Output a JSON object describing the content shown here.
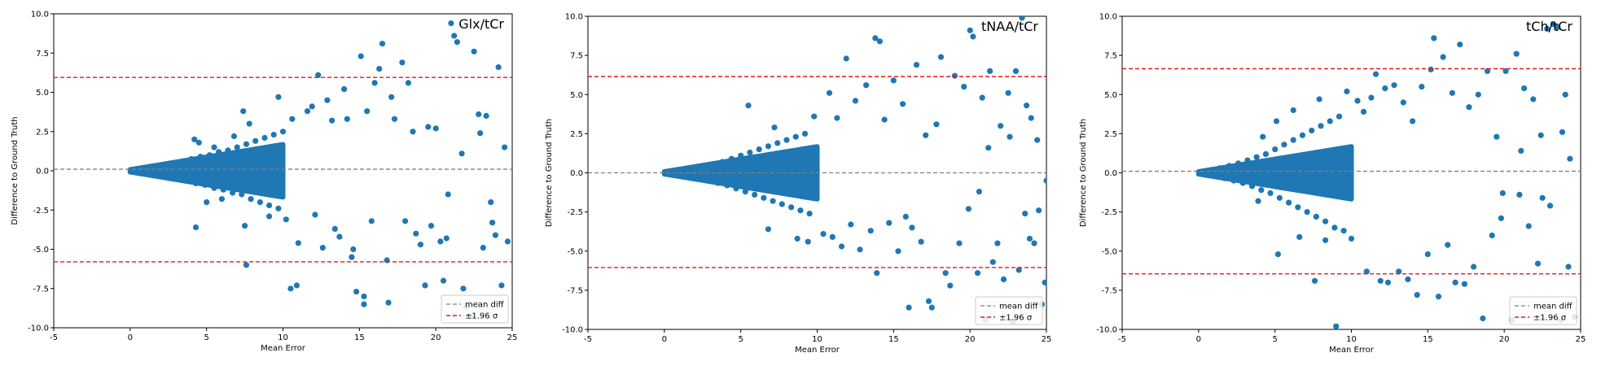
{
  "figure": {
    "shared": {
      "xlabel": "Mean Error",
      "ylabel": "Difference to Ground Truth",
      "xlim": [
        -5,
        25
      ],
      "ylim": [
        -10,
        10
      ],
      "x_ticks": [
        -5,
        0,
        5,
        10,
        15,
        20,
        25
      ],
      "y_ticks": [
        -10.0,
        -7.5,
        -5.0,
        -2.5,
        0.0,
        2.5,
        5.0,
        7.5,
        10.0
      ],
      "legend": [
        "mean diff",
        "±1.96 σ"
      ],
      "legend_position": "lower-right",
      "point_color": "#1f77b4",
      "mean_line_color": "#808080",
      "limit_line_color": "#e41a1c"
    }
  },
  "chart_data": [
    {
      "type": "scatter",
      "title": "Glx/tCr",
      "xlabel": "Mean Error",
      "ylabel": "Difference to Ground Truth",
      "xlim": [
        -5,
        25
      ],
      "ylim": [
        -10,
        10
      ],
      "mean_diff": 0.1,
      "upper_limit": 5.95,
      "lower_limit": -5.8,
      "legend": [
        "mean diff",
        "±1.96 σ"
      ],
      "legend_position": "lower-right",
      "points": [
        [
          0.2,
          0.05
        ],
        [
          0.4,
          -0.1
        ],
        [
          0.6,
          0.12
        ],
        [
          0.8,
          -0.15
        ],
        [
          1.0,
          0.2
        ],
        [
          1.3,
          -0.2
        ],
        [
          1.6,
          0.25
        ],
        [
          1.9,
          -0.3
        ],
        [
          2.2,
          0.35
        ],
        [
          2.5,
          -0.4
        ],
        [
          2.8,
          0.45
        ],
        [
          3.1,
          -0.5
        ],
        [
          3.4,
          0.6
        ],
        [
          3.7,
          -0.6
        ],
        [
          4.0,
          0.75
        ],
        [
          4.3,
          -0.8
        ],
        [
          4.6,
          0.9
        ],
        [
          4.9,
          -0.9
        ],
        [
          5.2,
          1.0
        ],
        [
          5.5,
          -1.1
        ],
        [
          5.8,
          1.2
        ],
        [
          6.1,
          -1.2
        ],
        [
          6.4,
          1.3
        ],
        [
          6.7,
          -1.4
        ],
        [
          7.0,
          1.5
        ],
        [
          7.3,
          -1.5
        ],
        [
          7.6,
          1.7
        ],
        [
          7.9,
          -1.8
        ],
        [
          8.2,
          1.9
        ],
        [
          8.5,
          -2.0
        ],
        [
          8.8,
          2.1
        ],
        [
          9.1,
          -2.2
        ],
        [
          9.4,
          2.3
        ],
        [
          9.7,
          -2.4
        ],
        [
          10.0,
          2.5
        ],
        [
          4.2,
          2.0
        ],
        [
          4.5,
          1.8
        ],
        [
          5.0,
          -2.0
        ],
        [
          5.5,
          1.5
        ],
        [
          6.0,
          -1.8
        ],
        [
          4.3,
          -3.6
        ],
        [
          6.8,
          2.2
        ],
        [
          7.4,
          3.8
        ],
        [
          7.8,
          3.0
        ],
        [
          7.6,
          -6.0
        ],
        [
          7.5,
          -3.5
        ],
        [
          9.7,
          4.7
        ],
        [
          9.1,
          -2.9
        ],
        [
          10.2,
          -3.1
        ],
        [
          10.6,
          3.3
        ],
        [
          11.0,
          -4.6
        ],
        [
          10.5,
          -7.5
        ],
        [
          10.9,
          -7.3
        ],
        [
          11.6,
          3.8
        ],
        [
          11.9,
          4.1
        ],
        [
          12.3,
          6.1
        ],
        [
          12.1,
          -2.8
        ],
        [
          12.6,
          -4.9
        ],
        [
          12.9,
          4.5
        ],
        [
          13.2,
          3.2
        ],
        [
          13.4,
          -3.7
        ],
        [
          13.7,
          -4.2
        ],
        [
          14.0,
          5.2
        ],
        [
          14.2,
          3.3
        ],
        [
          14.5,
          -5.5
        ],
        [
          14.6,
          -5.0
        ],
        [
          14.8,
          -7.7
        ],
        [
          15.1,
          7.3
        ],
        [
          15.3,
          -8.0
        ],
        [
          15.5,
          3.8
        ],
        [
          15.3,
          -8.5
        ],
        [
          15.8,
          -3.2
        ],
        [
          16.0,
          5.6
        ],
        [
          16.3,
          6.5
        ],
        [
          16.5,
          8.1
        ],
        [
          16.8,
          -5.7
        ],
        [
          16.9,
          -8.4
        ],
        [
          17.1,
          4.7
        ],
        [
          17.3,
          3.3
        ],
        [
          17.8,
          6.9
        ],
        [
          18.0,
          -3.2
        ],
        [
          18.2,
          5.6
        ],
        [
          18.5,
          2.5
        ],
        [
          18.7,
          -4.0
        ],
        [
          19.0,
          -4.7
        ],
        [
          19.3,
          -7.3
        ],
        [
          19.5,
          2.8
        ],
        [
          19.7,
          -3.5
        ],
        [
          20.0,
          2.7
        ],
        [
          20.3,
          -4.5
        ],
        [
          20.5,
          -7.0
        ],
        [
          20.7,
          -4.3
        ],
        [
          21.0,
          9.4
        ],
        [
          21.2,
          8.6
        ],
        [
          21.4,
          8.2
        ],
        [
          21.8,
          -7.5
        ],
        [
          22.0,
          -8.7
        ],
        [
          22.3,
          -9.3
        ],
        [
          22.5,
          7.6
        ],
        [
          22.8,
          3.6
        ],
        [
          23.1,
          -4.9
        ],
        [
          23.3,
          3.5
        ],
        [
          23.6,
          -2.0
        ],
        [
          23.9,
          -4.1
        ],
        [
          24.1,
          6.6
        ],
        [
          24.3,
          -7.3
        ],
        [
          24.5,
          1.5
        ],
        [
          24.7,
          -4.5
        ],
        [
          22.9,
          2.4
        ],
        [
          23.7,
          -3.3
        ],
        [
          21.7,
          1.1
        ],
        [
          20.8,
          -1.5
        ]
      ]
    },
    {
      "type": "scatter",
      "title": "tNAA/tCr",
      "xlabel": "Mean Error",
      "ylabel": "Difference to Ground Truth",
      "xlim": [
        -5,
        25
      ],
      "ylim": [
        -10,
        10
      ],
      "mean_diff": 0.0,
      "upper_limit": 6.15,
      "lower_limit": -6.05,
      "legend": [
        "mean diff",
        "±1.96 σ"
      ],
      "legend_position": "lower-right",
      "points": [
        [
          0.2,
          0.05
        ],
        [
          0.5,
          -0.1
        ],
        [
          0.8,
          0.15
        ],
        [
          1.1,
          -0.2
        ],
        [
          1.4,
          0.25
        ],
        [
          1.7,
          -0.3
        ],
        [
          2.0,
          0.35
        ],
        [
          2.3,
          -0.4
        ],
        [
          2.6,
          0.45
        ],
        [
          2.9,
          -0.5
        ],
        [
          3.2,
          0.55
        ],
        [
          3.5,
          -0.65
        ],
        [
          3.8,
          0.7
        ],
        [
          4.1,
          -0.8
        ],
        [
          4.4,
          0.9
        ],
        [
          4.7,
          -1.0
        ],
        [
          5.0,
          1.1
        ],
        [
          5.3,
          -1.2
        ],
        [
          5.6,
          1.3
        ],
        [
          5.9,
          -1.4
        ],
        [
          6.2,
          1.5
        ],
        [
          6.5,
          -1.6
        ],
        [
          6.8,
          1.7
        ],
        [
          7.1,
          -1.8
        ],
        [
          7.4,
          1.9
        ],
        [
          7.7,
          -2.0
        ],
        [
          8.0,
          2.1
        ],
        [
          8.3,
          -2.2
        ],
        [
          8.6,
          2.3
        ],
        [
          8.9,
          -2.4
        ],
        [
          9.2,
          2.5
        ],
        [
          9.5,
          -2.6
        ],
        [
          5.5,
          4.3
        ],
        [
          6.8,
          -3.6
        ],
        [
          7.2,
          2.9
        ],
        [
          8.7,
          -4.2
        ],
        [
          9.4,
          -4.4
        ],
        [
          9.8,
          3.6
        ],
        [
          10.4,
          -3.9
        ],
        [
          10.8,
          5.1
        ],
        [
          11.0,
          -4.1
        ],
        [
          11.3,
          3.5
        ],
        [
          11.6,
          -4.7
        ],
        [
          11.9,
          7.3
        ],
        [
          12.2,
          -3.3
        ],
        [
          12.5,
          4.6
        ],
        [
          12.8,
          -4.9
        ],
        [
          13.2,
          5.6
        ],
        [
          13.5,
          -3.7
        ],
        [
          13.8,
          8.6
        ],
        [
          13.9,
          -6.4
        ],
        [
          14.1,
          8.4
        ],
        [
          14.4,
          3.4
        ],
        [
          14.7,
          -3.2
        ],
        [
          15.0,
          5.9
        ],
        [
          15.3,
          -5.0
        ],
        [
          15.6,
          4.4
        ],
        [
          15.8,
          -2.8
        ],
        [
          16.0,
          -8.6
        ],
        [
          16.2,
          -3.5
        ],
        [
          16.5,
          6.9
        ],
        [
          16.8,
          -4.4
        ],
        [
          17.1,
          2.4
        ],
        [
          17.3,
          -8.2
        ],
        [
          17.5,
          -8.6
        ],
        [
          17.8,
          3.1
        ],
        [
          18.1,
          7.4
        ],
        [
          18.4,
          -6.4
        ],
        [
          18.7,
          -7.2
        ],
        [
          19.0,
          6.2
        ],
        [
          19.3,
          -4.5
        ],
        [
          19.6,
          5.5
        ],
        [
          19.9,
          -2.3
        ],
        [
          20.0,
          9.1
        ],
        [
          20.2,
          8.7
        ],
        [
          20.5,
          -6.4
        ],
        [
          20.8,
          4.8
        ],
        [
          21.0,
          -9.4
        ],
        [
          21.3,
          6.5
        ],
        [
          21.5,
          -5.7
        ],
        [
          21.8,
          -4.5
        ],
        [
          22.0,
          3.0
        ],
        [
          22.2,
          -6.8
        ],
        [
          22.5,
          5.1
        ],
        [
          22.8,
          -9.5
        ],
        [
          23.0,
          6.5
        ],
        [
          23.2,
          -6.2
        ],
        [
          23.4,
          9.9
        ],
        [
          23.7,
          4.3
        ],
        [
          23.9,
          -4.2
        ],
        [
          24.0,
          3.5
        ],
        [
          24.2,
          -4.5
        ],
        [
          24.5,
          -2.4
        ],
        [
          24.7,
          -8.4
        ],
        [
          24.9,
          -7.0
        ],
        [
          25.0,
          -0.5
        ],
        [
          22.6,
          2.3
        ],
        [
          23.6,
          -2.6
        ],
        [
          21.2,
          1.6
        ],
        [
          20.6,
          -1.2
        ],
        [
          24.4,
          2.1
        ]
      ]
    },
    {
      "type": "scatter",
      "title": "tCh/tCr",
      "xlabel": "Mean Error",
      "ylabel": "Difference to Ground Truth",
      "xlim": [
        -5,
        25
      ],
      "ylim": [
        -10,
        10
      ],
      "mean_diff": 0.1,
      "upper_limit": 6.65,
      "lower_limit": -6.45,
      "legend": [
        "mean diff",
        "±1.96 σ"
      ],
      "legend_position": "lower-right",
      "points": [
        [
          0.2,
          0.05
        ],
        [
          0.5,
          -0.1
        ],
        [
          0.8,
          0.15
        ],
        [
          1.1,
          -0.2
        ],
        [
          1.4,
          0.3
        ],
        [
          1.7,
          -0.35
        ],
        [
          2.0,
          0.45
        ],
        [
          2.3,
          -0.5
        ],
        [
          2.6,
          0.6
        ],
        [
          2.9,
          -0.65
        ],
        [
          3.2,
          0.8
        ],
        [
          3.5,
          -0.85
        ],
        [
          3.8,
          1.0
        ],
        [
          4.1,
          -1.1
        ],
        [
          4.4,
          1.2
        ],
        [
          4.7,
          -1.3
        ],
        [
          5.0,
          1.5
        ],
        [
          5.3,
          -1.6
        ],
        [
          5.6,
          1.8
        ],
        [
          5.9,
          -1.9
        ],
        [
          6.2,
          2.1
        ],
        [
          6.5,
          -2.2
        ],
        [
          6.8,
          2.4
        ],
        [
          7.1,
          -2.5
        ],
        [
          7.4,
          2.7
        ],
        [
          7.7,
          -2.8
        ],
        [
          8.0,
          3.0
        ],
        [
          8.3,
          -3.1
        ],
        [
          8.6,
          3.3
        ],
        [
          8.9,
          -3.5
        ],
        [
          9.2,
          3.6
        ],
        [
          9.5,
          -3.7
        ],
        [
          3.9,
          -1.8
        ],
        [
          4.2,
          2.3
        ],
        [
          5.1,
          3.3
        ],
        [
          5.2,
          -5.2
        ],
        [
          6.2,
          4.0
        ],
        [
          6.6,
          -4.1
        ],
        [
          7.6,
          -6.9
        ],
        [
          7.9,
          4.7
        ],
        [
          8.3,
          -4.3
        ],
        [
          9.0,
          -9.8
        ],
        [
          9.7,
          5.2
        ],
        [
          10.0,
          -4.2
        ],
        [
          10.4,
          4.6
        ],
        [
          10.8,
          3.9
        ],
        [
          11.0,
          -6.3
        ],
        [
          11.3,
          4.8
        ],
        [
          11.6,
          6.3
        ],
        [
          11.9,
          -6.9
        ],
        [
          12.2,
          5.4
        ],
        [
          12.4,
          -7.0
        ],
        [
          12.8,
          5.6
        ],
        [
          13.1,
          -6.3
        ],
        [
          13.4,
          4.5
        ],
        [
          13.7,
          -6.8
        ],
        [
          14.0,
          3.3
        ],
        [
          14.3,
          -7.8
        ],
        [
          14.6,
          5.5
        ],
        [
          15.0,
          -5.2
        ],
        [
          15.2,
          6.6
        ],
        [
          15.4,
          8.6
        ],
        [
          15.7,
          -7.9
        ],
        [
          16.0,
          7.4
        ],
        [
          16.3,
          -4.6
        ],
        [
          16.6,
          5.1
        ],
        [
          16.8,
          -7.0
        ],
        [
          17.1,
          8.2
        ],
        [
          17.4,
          -7.1
        ],
        [
          17.7,
          4.2
        ],
        [
          18.0,
          -6.0
        ],
        [
          18.3,
          5.0
        ],
        [
          18.6,
          -9.3
        ],
        [
          18.9,
          6.5
        ],
        [
          19.2,
          -4.0
        ],
        [
          19.5,
          2.3
        ],
        [
          19.8,
          -2.9
        ],
        [
          20.1,
          6.5
        ],
        [
          20.5,
          -9.4
        ],
        [
          20.8,
          7.6
        ],
        [
          21.0,
          -1.4
        ],
        [
          21.3,
          5.4
        ],
        [
          21.6,
          -3.4
        ],
        [
          21.9,
          4.7
        ],
        [
          22.2,
          -5.8
        ],
        [
          22.5,
          -1.6
        ],
        [
          22.8,
          9.2
        ],
        [
          23.0,
          -2.1
        ],
        [
          23.2,
          9.5
        ],
        [
          23.5,
          9.3
        ],
        [
          23.7,
          -9.4
        ],
        [
          24.0,
          5.0
        ],
        [
          24.2,
          -6.0
        ],
        [
          24.3,
          0.9
        ],
        [
          24.6,
          -9.2
        ],
        [
          22.4,
          2.4
        ],
        [
          23.8,
          2.6
        ],
        [
          21.1,
          1.4
        ],
        [
          19.9,
          -1.3
        ]
      ]
    }
  ]
}
